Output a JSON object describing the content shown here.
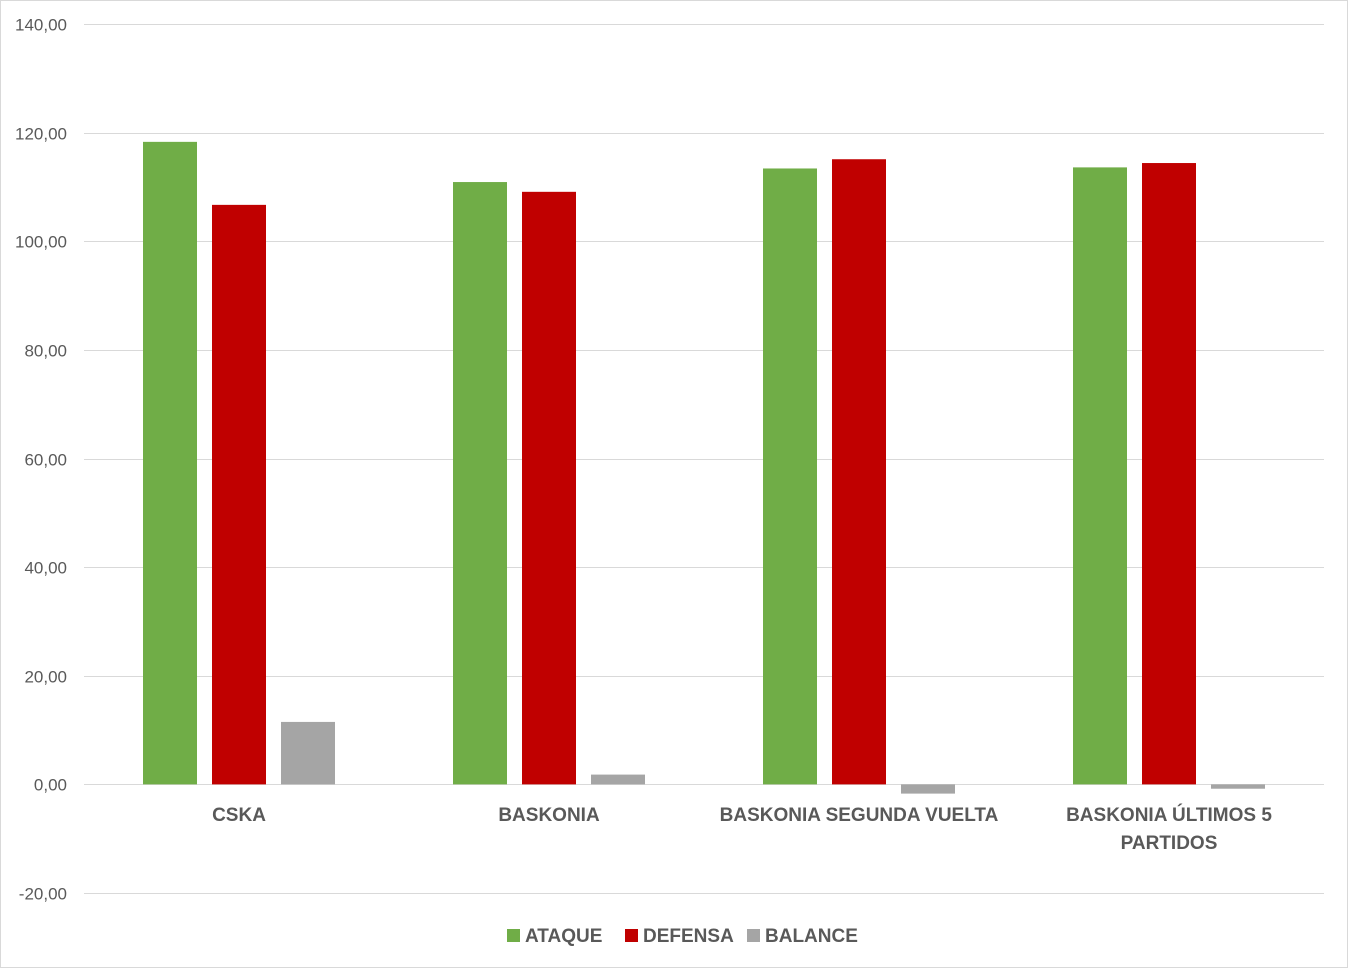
{
  "chart_data": {
    "type": "bar",
    "categories": [
      [
        "CSKA"
      ],
      [
        "BASKONIA"
      ],
      [
        "BASKONIA SEGUNDA VUELTA"
      ],
      [
        "BASKONIA ÚLTIMOS 5",
        "PARTIDOS"
      ]
    ],
    "series": [
      {
        "name": "ATAQUE",
        "color": "#70ad47",
        "values": [
          118.3,
          110.9,
          113.4,
          113.6
        ]
      },
      {
        "name": "DEFENSA",
        "color": "#c00000",
        "values": [
          106.7,
          109.1,
          115.1,
          114.4
        ]
      },
      {
        "name": "BALANCE",
        "color": "#a5a5a5",
        "values": [
          11.5,
          1.8,
          -1.7,
          -0.8
        ]
      }
    ],
    "ylim": [
      -20,
      140
    ],
    "ytick_step": 20,
    "ytick_labels": [
      "-20,00",
      "0,00",
      "20,00",
      "40,00",
      "60,00",
      "80,00",
      "100,00",
      "120,00",
      "140,00"
    ],
    "grid": true,
    "legend_position": "bottom",
    "gridline_color": "#d9d9d9"
  }
}
